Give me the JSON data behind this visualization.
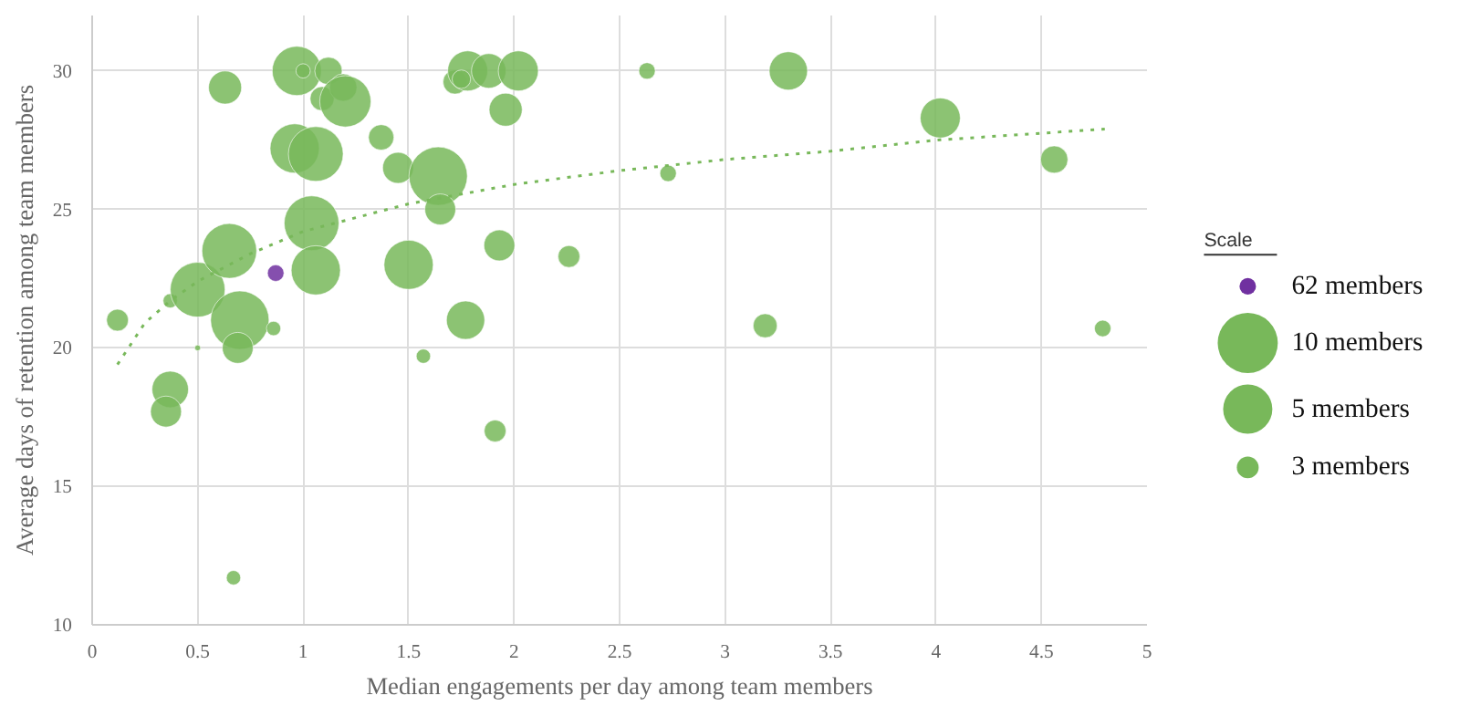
{
  "chart_data": {
    "type": "bubble",
    "xlabel": "Median engagements per day among team members",
    "ylabel": "Average days of retention among team members",
    "xlim": [
      0,
      5
    ],
    "xticks": [
      0,
      0.5,
      1,
      1.5,
      2,
      2.5,
      3,
      3.5,
      4,
      4.5,
      5
    ],
    "ylim": [
      10,
      32
    ],
    "yticks": [
      10,
      15,
      20,
      25,
      30
    ],
    "grid": true,
    "legend": "right",
    "legend_title": "Scale",
    "size_legend": [
      {
        "value": 1.06,
        "label": "10 members"
      },
      {
        "value": 0.71,
        "label": "5 members"
      },
      {
        "value": 0.14,
        "label": "3 members"
      }
    ],
    "series": [
      {
        "color": "#78b85a",
        "x": [
          0.12,
          0.37,
          0.5,
          0.5,
          0.37,
          0.35,
          0.63,
          0.65,
          0.7,
          0.69,
          0.86,
          0.67,
          0.97,
          1.0,
          1.12,
          1.09,
          1.19,
          1.2,
          0.96,
          1.06,
          1.37,
          1.45,
          1.64,
          1.65,
          1.04,
          1.06,
          1.5,
          1.93,
          2.26,
          1.77,
          1.57,
          1.91,
          1.72,
          1.78,
          1.88,
          2.02,
          1.96,
          1.75,
          2.63,
          3.3,
          2.73,
          4.02,
          4.56,
          3.19,
          4.79
        ],
        "values": [
          21.0,
          21.7,
          22.1,
          20.0,
          18.5,
          17.7,
          29.4,
          23.5,
          21.0,
          20.0,
          20.7,
          11.7,
          30.0,
          30.0,
          30.0,
          29.0,
          29.4,
          28.9,
          27.2,
          27.0,
          27.6,
          26.5,
          26.2,
          25.0,
          24.5,
          22.8,
          23.0,
          23.7,
          23.3,
          21.0,
          19.7,
          17.0,
          29.6,
          30.0,
          30.0,
          30.0,
          28.6,
          29.7,
          30.0,
          30.0,
          26.3,
          28.3,
          26.8,
          20.8,
          20.7
        ],
        "sizes": [
          0.14,
          0.06,
          0.88,
          0.01,
          0.39,
          0.28,
          0.32,
          0.88,
          1,
          0.28,
          0.06,
          0.06,
          0.71,
          0.06,
          0.22,
          0.17,
          0.22,
          0.77,
          0.71,
          0.88,
          0.19,
          0.28,
          1,
          0.28,
          0.88,
          0.71,
          0.71,
          0.28,
          0.14,
          0.43,
          0.06,
          0.14,
          0.17,
          0.47,
          0.35,
          0.47,
          0.32,
          0.1,
          0.08,
          0.43,
          0.08,
          0.47,
          0.22,
          0.17,
          0.08
        ]
      },
      {
        "name": "62 members",
        "color": "#7030a0",
        "x": [
          0.87
        ],
        "values": [
          22.7
        ],
        "sizes": [
          0.08
        ]
      },
      {
        "type": "line",
        "color": "#78b85a",
        "line_style": "dotted",
        "marker": "none",
        "x": [
          0.12,
          0.25,
          0.37,
          0.5,
          0.75,
          1.0,
          1.5,
          2.0,
          2.5,
          3.0,
          3.5,
          4.0,
          4.8
        ],
        "values": [
          19.4,
          20.9,
          21.7,
          22.4,
          23.4,
          24.2,
          25.2,
          25.9,
          26.4,
          26.8,
          27.1,
          27.5,
          27.9
        ]
      }
    ]
  }
}
